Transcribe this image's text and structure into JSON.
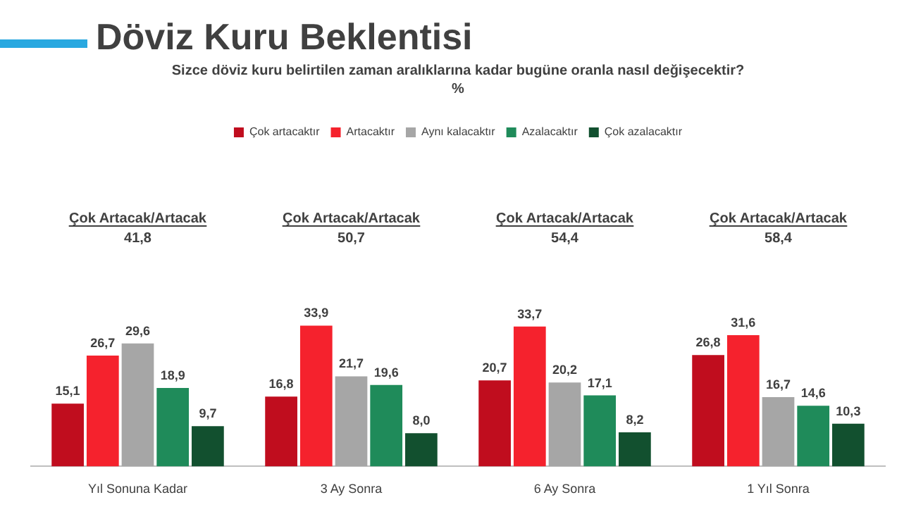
{
  "chart_data": {
    "type": "bar",
    "title": "Döviz Kuru Beklentisi",
    "subtitle": "Sizce döviz kuru belirtilen zaman aralıklarına kadar bugüne oranla nasıl değişecektir?\n%",
    "categories": [
      "Yıl Sonuna Kadar",
      "3 Ay Sonra",
      "6 Ay Sonra",
      "1 Yıl Sonra"
    ],
    "series": [
      {
        "name": "Çok artacaktır",
        "color": "#c00d1e",
        "values": [
          15.1,
          16.8,
          20.7,
          26.8
        ],
        "value_labels": [
          "15,1",
          "16,8",
          "20,7",
          "26,8"
        ]
      },
      {
        "name": "Artacaktır",
        "color": "#f5222d",
        "values": [
          26.7,
          33.9,
          33.7,
          31.6
        ],
        "value_labels": [
          "26,7",
          "33,9",
          "33,7",
          "31,6"
        ]
      },
      {
        "name": "Aynı kalacaktır",
        "color": "#a6a6a6",
        "values": [
          29.6,
          21.7,
          20.2,
          16.7
        ],
        "value_labels": [
          "29,6",
          "21,7",
          "20,2",
          "16,7"
        ]
      },
      {
        "name": "Azalacaktır",
        "color": "#1f8b5a",
        "values": [
          18.9,
          19.6,
          17.1,
          14.6
        ],
        "value_labels": [
          "18,9",
          "19,6",
          "17,1",
          "14,6"
        ]
      },
      {
        "name": "Çok azalacaktır",
        "color": "#12502f",
        "values": [
          9.7,
          8.0,
          8.2,
          10.3
        ],
        "value_labels": [
          "9,7",
          "8,0",
          "8,2",
          "10,3"
        ]
      }
    ],
    "annotations": [
      "Çok Artacak/Artacak",
      "41,8",
      "Çok Artacak/Artacak",
      "50,7",
      "Çok Artacak/Artacak",
      "54,4",
      "Çok Artacak/Artacak",
      "58,4"
    ],
    "legend": "top",
    "grid": false,
    "tick_labels": "x"
  }
}
